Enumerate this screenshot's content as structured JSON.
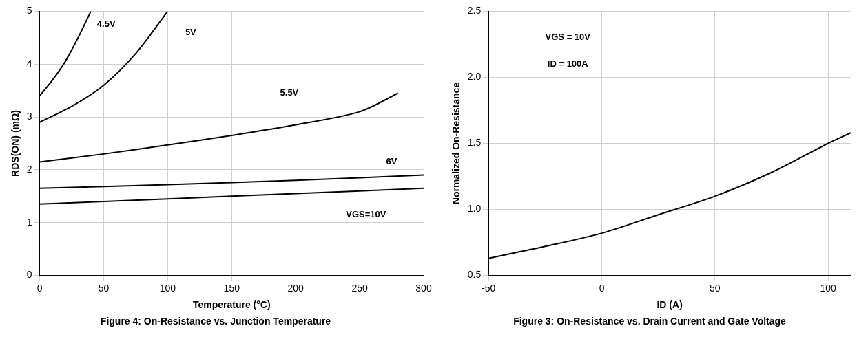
{
  "chart_data": [
    {
      "type": "line",
      "title": "Figure 4: On-Resistance vs. Junction Temperature",
      "x_label": "Temperature (°C)",
      "y_label": "RDS(ON) (mΩ)",
      "xlim": [
        0,
        300
      ],
      "xticks": [
        0,
        50,
        100,
        150,
        200,
        250,
        300
      ],
      "ylim": [
        0,
        5
      ],
      "yticks": [
        0,
        1,
        2,
        3,
        4,
        5
      ],
      "grid": true,
      "series": [
        {
          "name": "4.5V",
          "color": "#000000",
          "x": [
            0,
            10,
            20,
            30,
            40
          ],
          "values": [
            3.4,
            3.7,
            4.05,
            4.5,
            5.0
          ]
        },
        {
          "name": "5V",
          "color": "#000000",
          "x": [
            0,
            25,
            50,
            75,
            100
          ],
          "values": [
            2.9,
            3.2,
            3.6,
            4.2,
            5.0
          ]
        },
        {
          "name": "5.5V",
          "color": "#000000",
          "x": [
            0,
            50,
            100,
            150,
            200,
            250,
            280
          ],
          "values": [
            2.15,
            2.3,
            2.47,
            2.65,
            2.85,
            3.1,
            3.45
          ]
        },
        {
          "name": "6V",
          "color": "#000000",
          "x": [
            0,
            100,
            200,
            300
          ],
          "values": [
            1.65,
            1.72,
            1.8,
            1.9
          ]
        },
        {
          "name": "VGS=10V",
          "color": "#000000",
          "x": [
            0,
            100,
            200,
            300
          ],
          "values": [
            1.35,
            1.45,
            1.55,
            1.65
          ]
        }
      ],
      "annotations": [
        {
          "text": "4.5V",
          "x": 52,
          "y": 4.75
        },
        {
          "text": "5V",
          "x": 118,
          "y": 4.6
        },
        {
          "text": "5.5V",
          "x": 195,
          "y": 3.45
        },
        {
          "text": "6V",
          "x": 275,
          "y": 2.15
        },
        {
          "text": "VGS=10V",
          "x": 255,
          "y": 1.15
        }
      ]
    },
    {
      "type": "line",
      "title": "Figure 3: On-Resistance vs. Drain Current and Gate Voltage",
      "x_label": "ID (A)",
      "y_label": "Normalized On-Resistance",
      "xlim": [
        -50,
        110
      ],
      "xticks": [
        -50,
        0,
        50,
        100
      ],
      "ylim": [
        0.5,
        2.5
      ],
      "yticks": [
        0.5,
        {
          "value": 1,
          "label": "1.0"
        },
        1.5,
        {
          "value": 2,
          "label": "2.0"
        },
        2.5
      ],
      "grid": true,
      "series": [
        {
          "name": "Normalized On-Resistance",
          "color": "#000000",
          "x": [
            -50,
            -25,
            0,
            25,
            50,
            75,
            100,
            110
          ],
          "values": [
            0.63,
            0.72,
            0.82,
            0.96,
            1.1,
            1.28,
            1.5,
            1.58
          ]
        }
      ],
      "annotations": [
        {
          "text": "VGS = 10V",
          "x": -15,
          "y": 2.3
        },
        {
          "text": "ID = 100A",
          "x": -15,
          "y": 2.1
        }
      ]
    }
  ]
}
